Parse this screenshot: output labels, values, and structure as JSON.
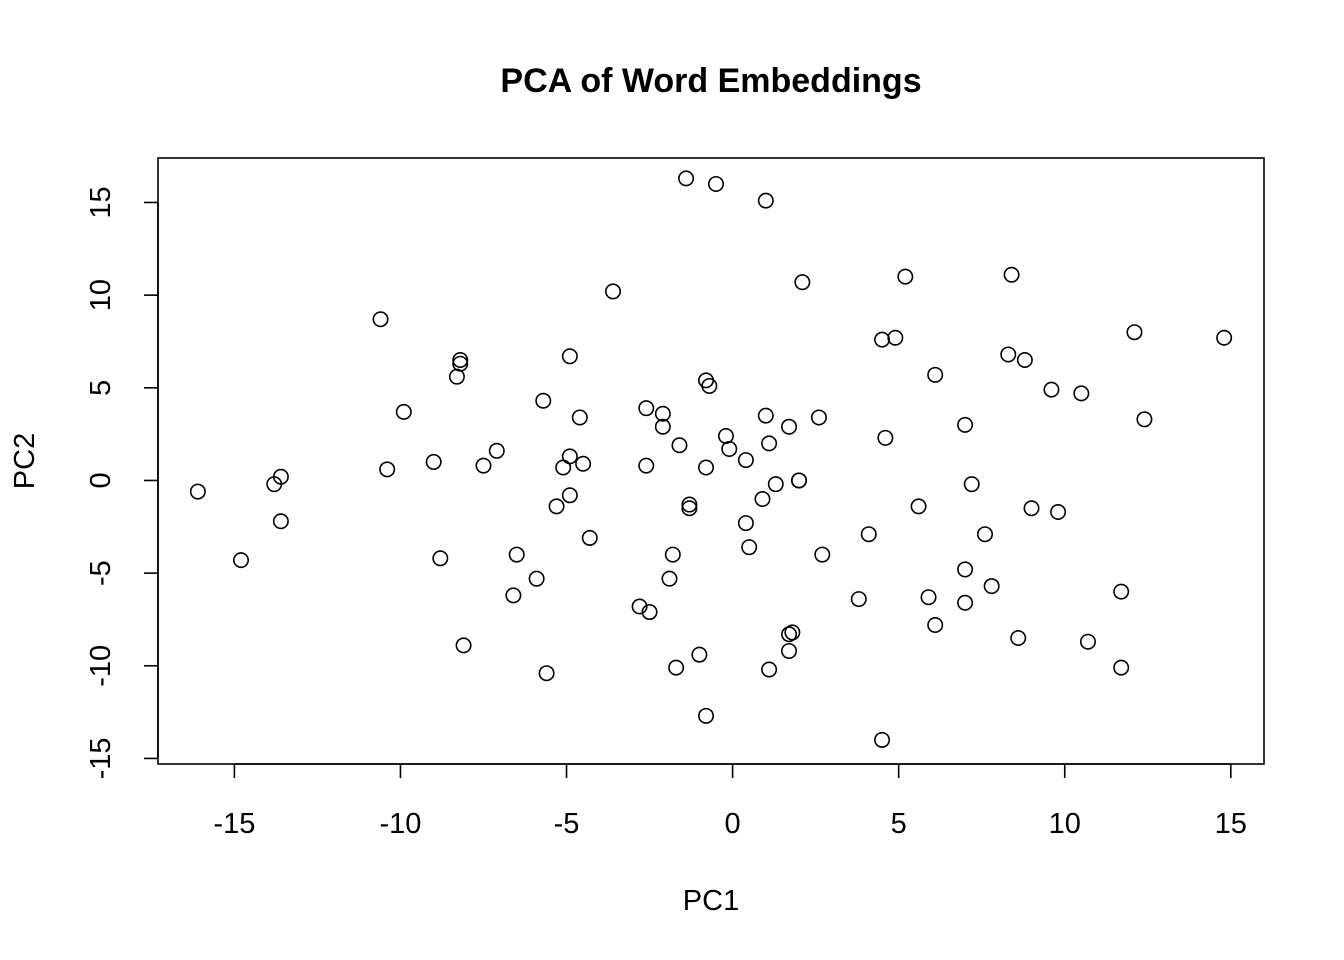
{
  "chart_data": {
    "type": "scatter",
    "title": "PCA of Word Embeddings",
    "xlabel": "PC1",
    "ylabel": "PC2",
    "xlim": [
      -17.3,
      16.0
    ],
    "ylim": [
      -15.3,
      17.4
    ],
    "xticks": [
      -15,
      -10,
      -5,
      0,
      5,
      10,
      15
    ],
    "yticks": [
      -15,
      -10,
      -5,
      0,
      5,
      10,
      15
    ],
    "grid": false,
    "legend": "none",
    "points": [
      {
        "x": -16.1,
        "y": -0.6
      },
      {
        "x": -14.8,
        "y": -4.3
      },
      {
        "x": -13.8,
        "y": -0.2
      },
      {
        "x": -13.6,
        "y": 0.2
      },
      {
        "x": -13.6,
        "y": -2.2
      },
      {
        "x": -10.6,
        "y": 8.7
      },
      {
        "x": -10.4,
        "y": 0.6
      },
      {
        "x": -9.9,
        "y": 3.7
      },
      {
        "x": -9.0,
        "y": 1.0
      },
      {
        "x": -8.8,
        "y": -4.2
      },
      {
        "x": -8.3,
        "y": 5.6
      },
      {
        "x": -8.2,
        "y": 6.3
      },
      {
        "x": -8.2,
        "y": 6.5
      },
      {
        "x": -8.1,
        "y": -8.9
      },
      {
        "x": -7.5,
        "y": 0.8
      },
      {
        "x": -7.1,
        "y": 1.6
      },
      {
        "x": -6.6,
        "y": -6.2
      },
      {
        "x": -6.5,
        "y": -4.0
      },
      {
        "x": -5.9,
        "y": -5.3
      },
      {
        "x": -5.7,
        "y": 4.3
      },
      {
        "x": -5.6,
        "y": -10.4
      },
      {
        "x": -5.3,
        "y": -1.4
      },
      {
        "x": -5.1,
        "y": 0.7
      },
      {
        "x": -4.9,
        "y": 6.7
      },
      {
        "x": -4.9,
        "y": -0.8
      },
      {
        "x": -4.9,
        "y": 1.3
      },
      {
        "x": -4.6,
        "y": 3.4
      },
      {
        "x": -4.5,
        "y": 0.9
      },
      {
        "x": -4.3,
        "y": -3.1
      },
      {
        "x": -3.6,
        "y": 10.2
      },
      {
        "x": -2.8,
        "y": -6.8
      },
      {
        "x": -2.6,
        "y": 3.9
      },
      {
        "x": -2.6,
        "y": 0.8
      },
      {
        "x": -2.5,
        "y": -7.1
      },
      {
        "x": -2.1,
        "y": 3.6
      },
      {
        "x": -2.1,
        "y": 2.9
      },
      {
        "x": -1.9,
        "y": -5.3
      },
      {
        "x": -1.8,
        "y": -4.0
      },
      {
        "x": -1.7,
        "y": -10.1
      },
      {
        "x": -1.6,
        "y": 1.9
      },
      {
        "x": -1.4,
        "y": 16.3
      },
      {
        "x": -1.3,
        "y": -1.3
      },
      {
        "x": -1.3,
        "y": -1.5
      },
      {
        "x": -1.0,
        "y": -9.4
      },
      {
        "x": -0.8,
        "y": 5.4
      },
      {
        "x": -0.8,
        "y": 0.7
      },
      {
        "x": -0.8,
        "y": -12.7
      },
      {
        "x": -0.7,
        "y": 5.1
      },
      {
        "x": -0.5,
        "y": 16.0
      },
      {
        "x": -0.2,
        "y": 2.4
      },
      {
        "x": -0.1,
        "y": 1.7
      },
      {
        "x": 0.4,
        "y": 1.1
      },
      {
        "x": 0.4,
        "y": -2.3
      },
      {
        "x": 0.5,
        "y": -3.6
      },
      {
        "x": 0.9,
        "y": -1.0
      },
      {
        "x": 1.0,
        "y": 15.1
      },
      {
        "x": 1.0,
        "y": 3.5
      },
      {
        "x": 1.1,
        "y": 2.0
      },
      {
        "x": 1.1,
        "y": -10.2
      },
      {
        "x": 1.3,
        "y": -0.2
      },
      {
        "x": 1.7,
        "y": -8.3
      },
      {
        "x": 1.7,
        "y": -9.2
      },
      {
        "x": 1.7,
        "y": 2.9
      },
      {
        "x": 1.8,
        "y": -8.2
      },
      {
        "x": 2.0,
        "y": 0.0
      },
      {
        "x": 2.0,
        "y": 0.0
      },
      {
        "x": 2.1,
        "y": 10.7
      },
      {
        "x": 2.6,
        "y": 3.4
      },
      {
        "x": 2.7,
        "y": -4.0
      },
      {
        "x": 3.8,
        "y": -6.4
      },
      {
        "x": 4.1,
        "y": -2.9
      },
      {
        "x": 4.5,
        "y": -14.0
      },
      {
        "x": 4.5,
        "y": 7.6
      },
      {
        "x": 4.6,
        "y": 2.3
      },
      {
        "x": 4.9,
        "y": 7.7
      },
      {
        "x": 5.2,
        "y": 11.0
      },
      {
        "x": 5.6,
        "y": -1.4
      },
      {
        "x": 5.9,
        "y": -6.3
      },
      {
        "x": 6.1,
        "y": -7.8
      },
      {
        "x": 6.1,
        "y": 5.7
      },
      {
        "x": 7.0,
        "y": 3.0
      },
      {
        "x": 7.0,
        "y": -4.8
      },
      {
        "x": 7.0,
        "y": -6.6
      },
      {
        "x": 7.2,
        "y": -0.2
      },
      {
        "x": 7.6,
        "y": -2.9
      },
      {
        "x": 7.8,
        "y": -5.7
      },
      {
        "x": 8.3,
        "y": 6.8
      },
      {
        "x": 8.4,
        "y": 11.1
      },
      {
        "x": 8.6,
        "y": -8.5
      },
      {
        "x": 8.8,
        "y": 6.5
      },
      {
        "x": 9.0,
        "y": -1.5
      },
      {
        "x": 9.6,
        "y": 4.9
      },
      {
        "x": 9.8,
        "y": -1.7
      },
      {
        "x": 10.5,
        "y": 4.7
      },
      {
        "x": 10.7,
        "y": -8.7
      },
      {
        "x": 11.7,
        "y": -10.1
      },
      {
        "x": 11.7,
        "y": -6.0
      },
      {
        "x": 12.1,
        "y": 8.0
      },
      {
        "x": 12.4,
        "y": 3.3
      },
      {
        "x": 14.8,
        "y": 7.7
      }
    ]
  }
}
